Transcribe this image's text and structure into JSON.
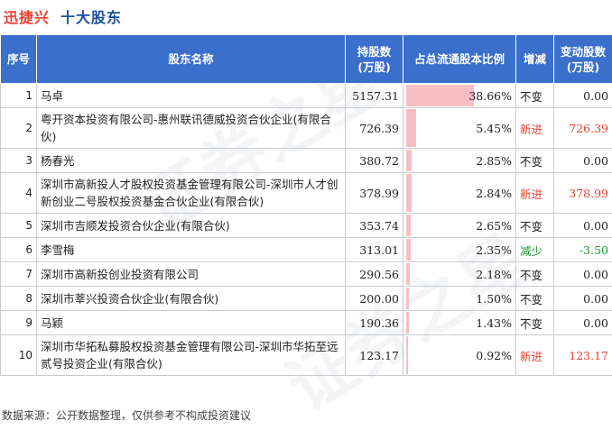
{
  "title": {
    "company": "迅捷兴",
    "main": "十大股东"
  },
  "headers": {
    "idx": "序号",
    "name": "股东名称",
    "shares_line1": "持股数",
    "shares_line2": "(万股)",
    "ratio": "占总流通股本比例",
    "change": "增减",
    "delta_line1": "变动股数",
    "delta_line2": "(万股)"
  },
  "colors": {
    "header_bg": "#3a6fcb",
    "bar": "#f7bfc3",
    "new": "#e8422f",
    "decrease": "#1b9b2c",
    "title_company": "#e8422f",
    "title_main": "#1a4fa3"
  },
  "rows": [
    {
      "idx": "1",
      "name": "马卓",
      "shares": "5157.31",
      "ratio": "38.66%",
      "ratio_value": 38.66,
      "change": "不变",
      "change_type": "same",
      "delta": "0.00"
    },
    {
      "idx": "2",
      "name": "粤开资本投资有限公司-惠州联讯德威投资合伙企业(有限合伙)",
      "shares": "726.39",
      "ratio": "5.45%",
      "ratio_value": 5.45,
      "change": "新进",
      "change_type": "new",
      "delta": "726.39"
    },
    {
      "idx": "3",
      "name": "杨春光",
      "shares": "380.72",
      "ratio": "2.85%",
      "ratio_value": 2.85,
      "change": "不变",
      "change_type": "same",
      "delta": "0.00"
    },
    {
      "idx": "4",
      "name": "深圳市高新投人才股权投资基金管理有限公司-深圳市人才创新创业二号股权投资基金合伙企业(有限合伙)",
      "shares": "378.99",
      "ratio": "2.84%",
      "ratio_value": 2.84,
      "change": "新进",
      "change_type": "new",
      "delta": "378.99"
    },
    {
      "idx": "5",
      "name": "深圳市吉顺发投资合伙企业(有限合伙)",
      "shares": "353.74",
      "ratio": "2.65%",
      "ratio_value": 2.65,
      "change": "不变",
      "change_type": "same",
      "delta": "0.00"
    },
    {
      "idx": "6",
      "name": "李雪梅",
      "shares": "313.01",
      "ratio": "2.35%",
      "ratio_value": 2.35,
      "change": "减少",
      "change_type": "decrease",
      "delta": "-3.50"
    },
    {
      "idx": "7",
      "name": "深圳市高新投创业投资有限公司",
      "shares": "290.56",
      "ratio": "2.18%",
      "ratio_value": 2.18,
      "change": "不变",
      "change_type": "same",
      "delta": "0.00"
    },
    {
      "idx": "8",
      "name": "深圳市莘兴投资合伙企业(有限合伙)",
      "shares": "200.00",
      "ratio": "1.50%",
      "ratio_value": 1.5,
      "change": "不变",
      "change_type": "same",
      "delta": "0.00"
    },
    {
      "idx": "9",
      "name": "马颖",
      "shares": "190.36",
      "ratio": "1.43%",
      "ratio_value": 1.43,
      "change": "不变",
      "change_type": "same",
      "delta": "0.00"
    },
    {
      "idx": "10",
      "name": "深圳市华拓私募股权投资基金管理有限公司-深圳市华拓至远贰号投资企业(有限合伙)",
      "shares": "123.17",
      "ratio": "0.92%",
      "ratio_value": 0.92,
      "change": "新进",
      "change_type": "new",
      "delta": "123.17"
    }
  ],
  "footer": "数据来源：公开数据整理，仅供参考不构成投资建议"
}
